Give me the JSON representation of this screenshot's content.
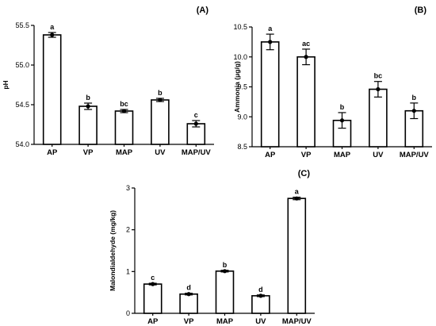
{
  "chart_data": [
    {
      "type": "bar",
      "panel": "(A)",
      "title": "",
      "xlabel": "",
      "ylabel": "pH",
      "categories": [
        "AP",
        "VP",
        "MAP",
        "UV",
        "MAP/UV"
      ],
      "values": [
        55.38,
        54.48,
        54.42,
        54.56,
        54.26
      ],
      "errors": [
        0.03,
        0.04,
        0.02,
        0.02,
        0.04
      ],
      "letters": [
        "a",
        "b",
        "bc",
        "b",
        "c"
      ],
      "ylim": [
        54.0,
        55.5
      ],
      "yticks": [
        "54.0",
        "54.5",
        "55.0",
        "55.5"
      ],
      "grid": false
    },
    {
      "type": "bar",
      "panel": "(B)",
      "title": "",
      "xlabel": "",
      "ylabel": "Ammonia (μg/g)",
      "categories": [
        "AP",
        "VP",
        "MAP",
        "UV",
        "MAP/UV"
      ],
      "values": [
        10.25,
        10.0,
        8.94,
        9.46,
        9.1
      ],
      "errors": [
        0.13,
        0.13,
        0.13,
        0.13,
        0.13
      ],
      "letters": [
        "a",
        "ac",
        "b",
        "bc",
        "b"
      ],
      "ylim": [
        8.5,
        10.5
      ],
      "yticks": [
        "8.5",
        "9.0",
        "9.5",
        "10.0",
        "10.5"
      ],
      "grid": false
    },
    {
      "type": "bar",
      "panel": "(C)",
      "title": "",
      "xlabel": "",
      "ylabel": "Malondialdehyde (mg/kg)",
      "categories": [
        "AP",
        "VP",
        "MAP",
        "UV",
        "MAP/UV"
      ],
      "values": [
        0.7,
        0.46,
        1.01,
        0.42,
        2.75
      ],
      "errors": [
        0.02,
        0.02,
        0.02,
        0.02,
        0.03
      ],
      "letters": [
        "c",
        "d",
        "b",
        "d",
        "a"
      ],
      "ylim": [
        0,
        3
      ],
      "yticks": [
        "0",
        "1",
        "2",
        "3"
      ],
      "grid": false
    }
  ],
  "colors": {
    "bar_fill": "#ffffff",
    "stroke": "#000000",
    "point": "#000000"
  }
}
